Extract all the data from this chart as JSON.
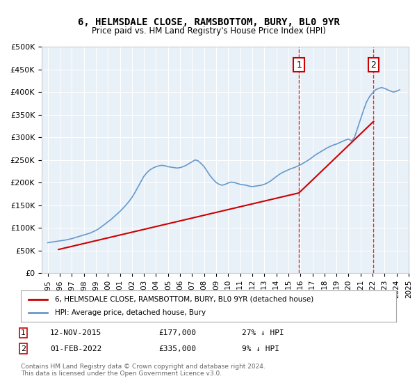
{
  "title": "6, HELMSDALE CLOSE, RAMSBOTTOM, BURY, BL0 9YR",
  "subtitle": "Price paid vs. HM Land Registry's House Price Index (HPI)",
  "legend_property": "6, HELMSDALE CLOSE, RAMSBOTTOM, BURY, BL0 9YR (detached house)",
  "legend_hpi": "HPI: Average price, detached house, Bury",
  "footnote": "Contains HM Land Registry data © Crown copyright and database right 2024.\nThis data is licensed under the Open Government Licence v3.0.",
  "annotation1": {
    "label": "1",
    "date_idx": 20.9,
    "price": 177000,
    "date_str": "12-NOV-2015",
    "hpi_pct": "27% ↓ HPI"
  },
  "annotation2": {
    "label": "2",
    "date_idx": 27.1,
    "price": 335000,
    "date_str": "01-FEB-2022",
    "hpi_pct": "9% ↓ HPI"
  },
  "property_color": "#cc0000",
  "hpi_color": "#6699cc",
  "background_color": "#e8f0f8",
  "ylim": [
    0,
    500000
  ],
  "yticks": [
    0,
    50000,
    100000,
    150000,
    200000,
    250000,
    300000,
    350000,
    400000,
    450000,
    500000
  ],
  "hpi_data_x": [
    1995.0,
    1995.25,
    1995.5,
    1995.75,
    1996.0,
    1996.25,
    1996.5,
    1996.75,
    1997.0,
    1997.25,
    1997.5,
    1997.75,
    1998.0,
    1998.25,
    1998.5,
    1998.75,
    1999.0,
    1999.25,
    1999.5,
    1999.75,
    2000.0,
    2000.25,
    2000.5,
    2000.75,
    2001.0,
    2001.25,
    2001.5,
    2001.75,
    2002.0,
    2002.25,
    2002.5,
    2002.75,
    2003.0,
    2003.25,
    2003.5,
    2003.75,
    2004.0,
    2004.25,
    2004.5,
    2004.75,
    2005.0,
    2005.25,
    2005.5,
    2005.75,
    2006.0,
    2006.25,
    2006.5,
    2006.75,
    2007.0,
    2007.25,
    2007.5,
    2007.75,
    2008.0,
    2008.25,
    2008.5,
    2008.75,
    2009.0,
    2009.25,
    2009.5,
    2009.75,
    2010.0,
    2010.25,
    2010.5,
    2010.75,
    2011.0,
    2011.25,
    2011.5,
    2011.75,
    2012.0,
    2012.25,
    2012.5,
    2012.75,
    2013.0,
    2013.25,
    2013.5,
    2013.75,
    2014.0,
    2014.25,
    2014.5,
    2014.75,
    2015.0,
    2015.25,
    2015.5,
    2015.75,
    2016.0,
    2016.25,
    2016.5,
    2016.75,
    2017.0,
    2017.25,
    2017.5,
    2017.75,
    2018.0,
    2018.25,
    2018.5,
    2018.75,
    2019.0,
    2019.25,
    2019.5,
    2019.75,
    2020.0,
    2020.25,
    2020.5,
    2020.75,
    2021.0,
    2021.25,
    2021.5,
    2021.75,
    2022.0,
    2022.25,
    2022.5,
    2022.75,
    2023.0,
    2023.25,
    2023.5,
    2023.75,
    2024.0,
    2024.25
  ],
  "hpi_data_y": [
    67000,
    68000,
    69000,
    70000,
    71000,
    72000,
    73000,
    74500,
    76000,
    78000,
    80000,
    82000,
    84000,
    86000,
    88000,
    91000,
    94000,
    98000,
    103000,
    108000,
    113000,
    118000,
    124000,
    130000,
    136000,
    143000,
    150000,
    158000,
    167000,
    178000,
    190000,
    202000,
    214000,
    222000,
    228000,
    232000,
    235000,
    237000,
    238000,
    237000,
    235000,
    234000,
    233000,
    232000,
    233000,
    235000,
    238000,
    242000,
    246000,
    250000,
    248000,
    242000,
    235000,
    225000,
    215000,
    207000,
    200000,
    196000,
    194000,
    196000,
    199000,
    201000,
    200000,
    198000,
    196000,
    195000,
    194000,
    192000,
    191000,
    192000,
    193000,
    194000,
    196000,
    199000,
    203000,
    208000,
    213000,
    218000,
    222000,
    225000,
    228000,
    231000,
    233000,
    236000,
    239000,
    243000,
    247000,
    251000,
    256000,
    261000,
    265000,
    269000,
    273000,
    277000,
    280000,
    283000,
    285000,
    288000,
    291000,
    294000,
    296000,
    292000,
    300000,
    320000,
    340000,
    360000,
    378000,
    390000,
    398000,
    405000,
    408000,
    410000,
    408000,
    405000,
    402000,
    400000,
    402000,
    405000
  ],
  "property_data_x": [
    1995.9,
    2015.88,
    2022.08
  ],
  "property_data_y": [
    52000,
    177000,
    335000
  ],
  "vline1_x": 2015.88,
  "vline2_x": 2022.08,
  "xlim": [
    1994.5,
    2025.0
  ]
}
